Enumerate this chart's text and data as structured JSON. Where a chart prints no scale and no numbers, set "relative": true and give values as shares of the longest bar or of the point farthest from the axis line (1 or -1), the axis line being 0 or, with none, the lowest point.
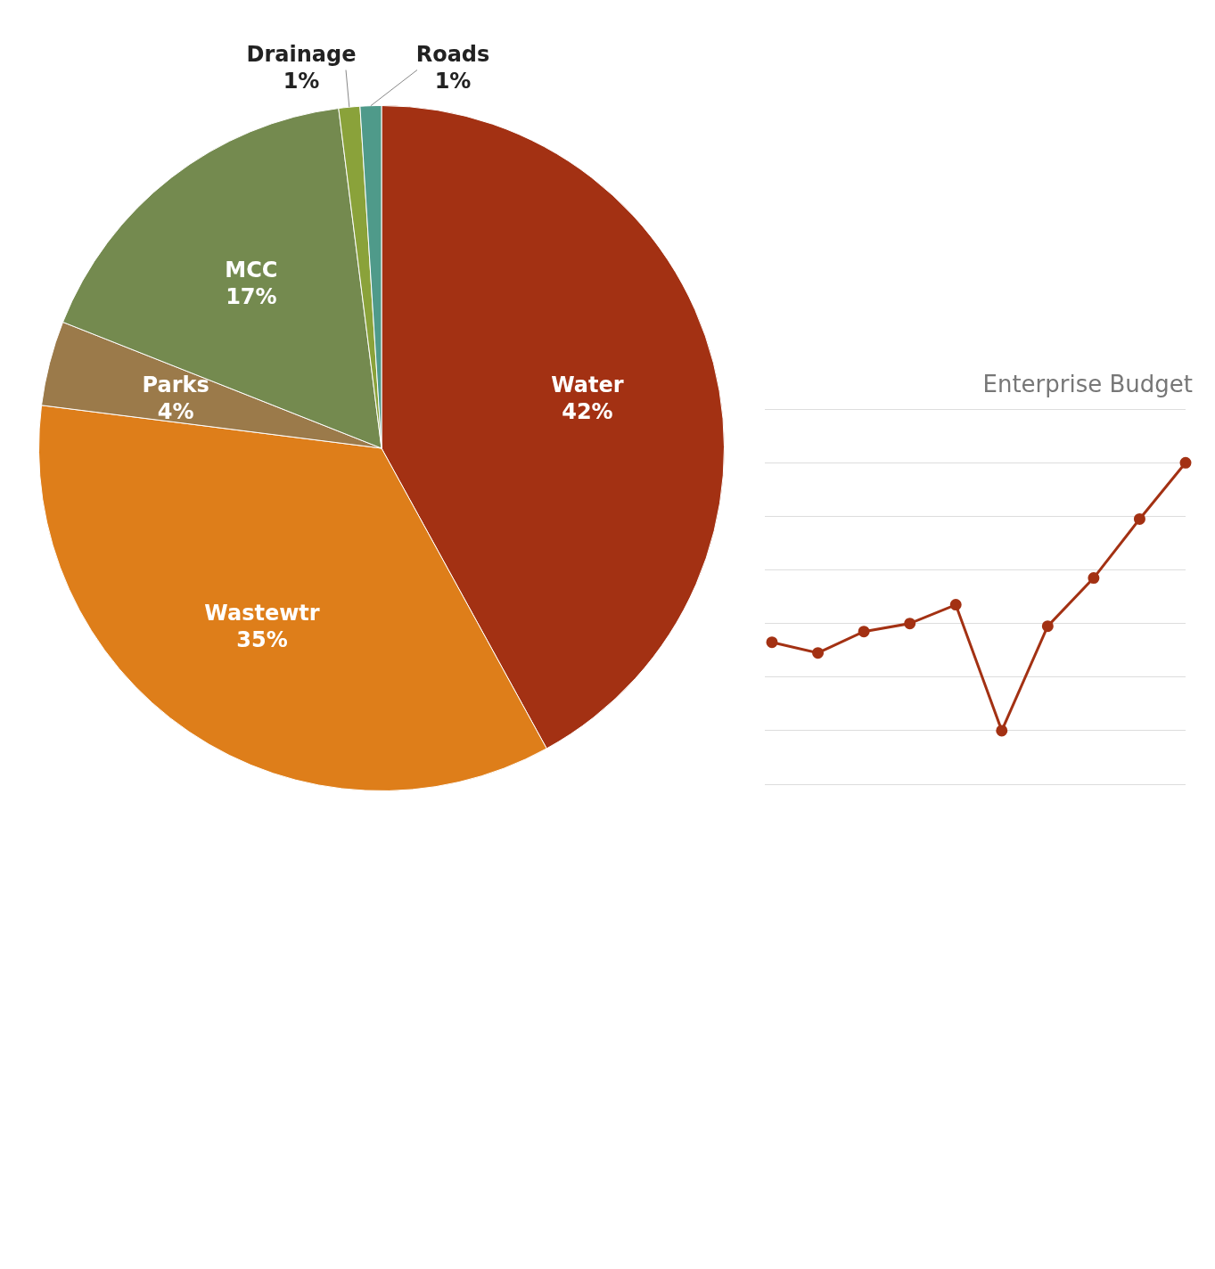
{
  "chart_data": [
    {
      "type": "pie",
      "categories": [
        "Water",
        "Wastewtr",
        "Parks",
        "MCC",
        "Drainage",
        "Roads"
      ],
      "values": [
        42,
        35,
        4,
        17,
        1,
        1
      ],
      "colors": [
        "#a33113",
        "#de7e1a",
        "#9b7a4a",
        "#748a4f",
        "#8aa23a",
        "#4f9a8a"
      ],
      "value_labels": [
        "42%",
        "35%",
        "4%",
        "17%",
        "1%",
        "1%"
      ],
      "legend": false
    },
    {
      "type": "line",
      "title": "Enterprise Budget",
      "relative": true,
      "categories": [
        null,
        null,
        null,
        null,
        null,
        null,
        null,
        null,
        null,
        null
      ],
      "series": [
        {
          "color": "#a33113",
          "values": [
            0.33,
            0.29,
            0.37,
            0.4,
            0.47,
            0,
            0.39,
            0.57,
            0.79,
            1
          ]
        }
      ],
      "marker": "circle",
      "grid": "y",
      "legend": false
    }
  ]
}
